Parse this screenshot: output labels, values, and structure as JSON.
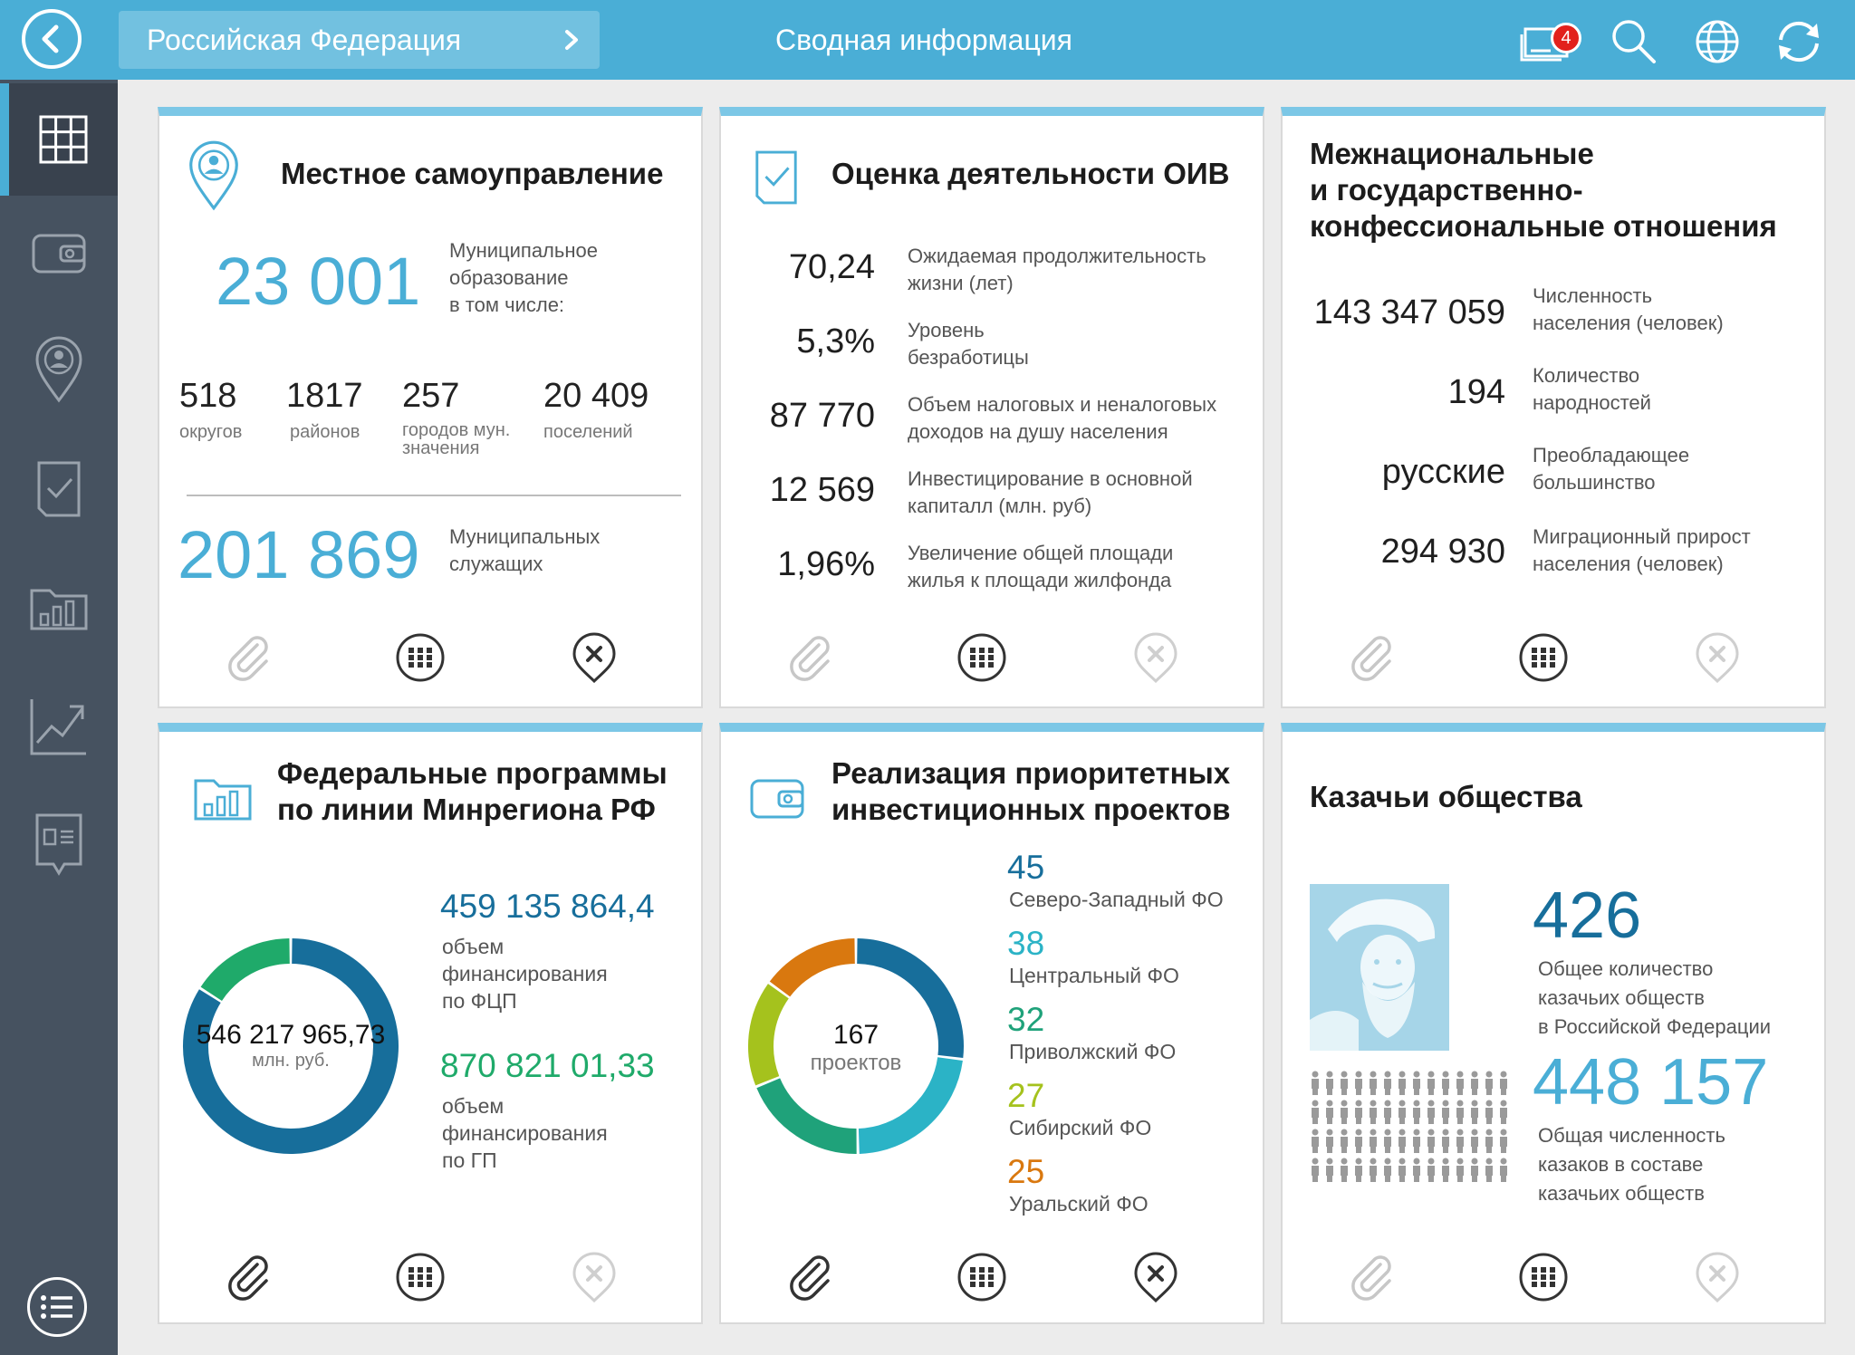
{
  "topbar": {
    "region": "Российская Федерация",
    "title": "Сводная информация",
    "notifications": "4",
    "color": "#4aaed6"
  },
  "sidebar": {
    "items": [
      "grid-icon",
      "wallet-icon",
      "location-person-icon",
      "checklist-icon",
      "folder-chart-icon",
      "trend-chart-icon",
      "document-icon"
    ]
  },
  "cards": {
    "local": {
      "title": "Местное самоуправление",
      "main_value": "23 001",
      "main_label_1": "Муниципальное",
      "main_label_2": "образование",
      "main_label_3": "в том числе:",
      "sub": [
        {
          "value": "518",
          "label": "округов"
        },
        {
          "value": "1817",
          "label": "районов"
        },
        {
          "value": "257",
          "label": "городов мун. значения"
        },
        {
          "value": "20 409",
          "label": "поселений"
        }
      ],
      "bottom_value": "201 869",
      "bottom_label_1": "Муниципальных",
      "bottom_label_2": "служащих"
    },
    "oiv": {
      "title": "Оценка деятельности ОИВ",
      "stats": [
        {
          "value": "70,24",
          "label_1": "Ожидаемая продолжительность",
          "label_2": "жизни (лет)"
        },
        {
          "value": "5,3%",
          "label_1": "Уровень",
          "label_2": "безработицы"
        },
        {
          "value": "87 770",
          "label_1": "Объем налоговых и неналоговых",
          "label_2": "доходов на душу населения"
        },
        {
          "value": "12 569",
          "label_1": "Инвестицирование в основной",
          "label_2": "капиталл (млн. руб)"
        },
        {
          "value": "1,96%",
          "label_1": "Увеличение общей площади",
          "label_2": "жилья к площади жилфонда"
        }
      ]
    },
    "national": {
      "title_1": "Межнациональные",
      "title_2": "и государственно-",
      "title_3": "конфессиональные отношения",
      "stats": [
        {
          "value": "143 347 059",
          "label_1": "Численность",
          "label_2": "населения (человек)"
        },
        {
          "value": "194",
          "label_1": "Количество",
          "label_2": "народностей"
        },
        {
          "value": "русские",
          "label_1": "Преобладающее",
          "label_2": "большинство"
        },
        {
          "value": "294 930",
          "label_1": "Миграционный прирост",
          "label_2": "населения (человек)"
        }
      ]
    },
    "federal": {
      "title_1": "Федеральные программы",
      "title_2": "по линии Минрегиона РФ",
      "center_value": "546 217 965,73",
      "center_unit": "млн. руб.",
      "fcp_value": "459 135 864,4",
      "fcp_label_1": "объем",
      "fcp_label_2": "финансирования",
      "fcp_label_3": "по ФЦП",
      "gp_value": "870 821 01,33",
      "gp_label_1": "объем",
      "gp_label_2": "финансирования",
      "gp_label_3": "по ГП"
    },
    "invest": {
      "title_1": "Реализация приоритетных",
      "title_2": "инвестиционных проектов",
      "center_value": "167",
      "center_label": "проектов",
      "districts": [
        {
          "value": "45",
          "label": "Северо-Западный ФО",
          "color": "#176e9b"
        },
        {
          "value": "38",
          "label": "Центральный ФО",
          "color": "#2bb3c6"
        },
        {
          "value": "32",
          "label": "Приволжский ФО",
          "color": "#1fa27a"
        },
        {
          "value": "27",
          "label": "Сибирский ФО",
          "color": "#a5c21d"
        },
        {
          "value": "25",
          "label": "Уральский ФО",
          "color": "#d9780f"
        }
      ]
    },
    "cossack": {
      "title": "Казачьи общества",
      "count_value": "426",
      "count_label_1": "Общее количество",
      "count_label_2": "казачьих обществ",
      "count_label_3": "в Российской Федерации",
      "people_value": "448 157",
      "people_label_1": "Общая численность",
      "people_label_2": "казаков в составе",
      "people_label_3": "казачьих обществ"
    }
  },
  "chart_data": [
    {
      "type": "pie",
      "title": "",
      "categories": [
        "по ФЦП",
        "по ГП"
      ],
      "values": [
        459135864.4,
        87082101.33
      ],
      "colors": [
        "#176e9b",
        "#1faa6a"
      ]
    },
    {
      "type": "pie",
      "title": "",
      "categories": [
        "Северо-Западный ФО",
        "Центральный ФО",
        "Приволжский ФО",
        "Сибирский ФО",
        "Уральский ФО"
      ],
      "values": [
        45,
        38,
        32,
        27,
        25
      ],
      "colors": [
        "#176e9b",
        "#2bb3c6",
        "#1fa27a",
        "#a5c21d",
        "#d9780f"
      ]
    }
  ]
}
